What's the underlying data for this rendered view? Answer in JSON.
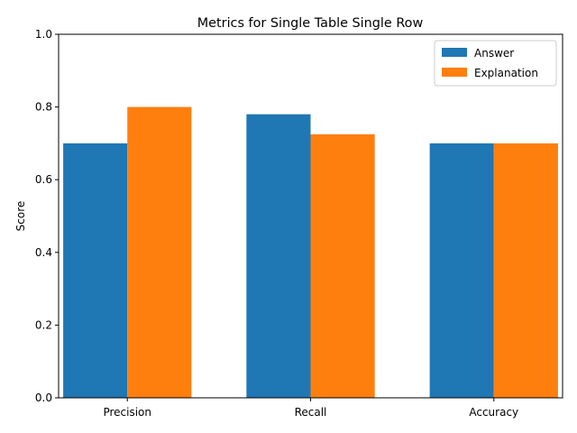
{
  "chart_data": {
    "type": "bar",
    "title": "Metrics for Single Table Single Row",
    "xlabel": "",
    "ylabel": "Score",
    "ylim": [
      0,
      1.0
    ],
    "yticks": [
      "0.0",
      "0.2",
      "0.4",
      "0.6",
      "0.8",
      "1.0"
    ],
    "categories": [
      "Precision",
      "Recall",
      "Accuracy"
    ],
    "series": [
      {
        "name": "Answer",
        "values": [
          0.7,
          0.78,
          0.7
        ],
        "color": "#1f77b4"
      },
      {
        "name": "Explanation",
        "values": [
          0.8,
          0.725,
          0.7
        ],
        "color": "#ff7f0e"
      }
    ],
    "legend_position": "top-right",
    "grid": false
  }
}
